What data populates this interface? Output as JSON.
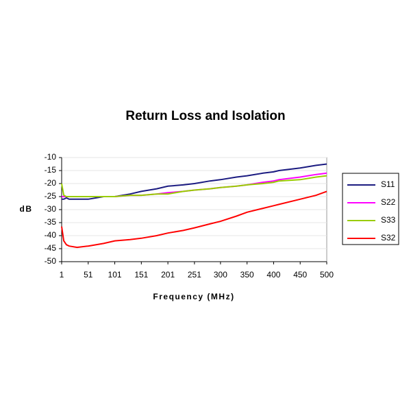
{
  "chart_data": {
    "type": "line",
    "title": "Return Loss and Isolation",
    "x_label": "Frequency (MHz)",
    "y_label": "dB",
    "x": [
      1,
      5,
      10,
      15,
      30,
      51,
      80,
      101,
      130,
      151,
      180,
      201,
      230,
      251,
      280,
      300,
      330,
      350,
      380,
      400,
      410,
      450,
      480,
      500
    ],
    "series": [
      {
        "name": "S11",
        "color": "#1a1a80",
        "values": [
          -26,
          -26,
          -25.5,
          -26,
          -26,
          -26,
          -25,
          -25,
          -24,
          -23,
          -22,
          -21,
          -20.5,
          -20,
          -19,
          -18.5,
          -17.5,
          -17,
          -16,
          -15.5,
          -15,
          -14,
          -13,
          -12.5
        ]
      },
      {
        "name": "S22",
        "color": "#ff00ff",
        "values": [
          -25,
          -25,
          -25,
          -25,
          -25,
          -25,
          -25,
          -25,
          -24.5,
          -24.5,
          -24,
          -23.5,
          -23,
          -22.5,
          -22,
          -21.5,
          -21,
          -20.5,
          -19.5,
          -19,
          -18.5,
          -17.5,
          -16.5,
          -16
        ]
      },
      {
        "name": "S33",
        "color": "#99cc00",
        "values": [
          -20,
          -24.5,
          -25,
          -25,
          -25,
          -25,
          -25,
          -25,
          -24.5,
          -24.5,
          -24,
          -24,
          -23,
          -22.5,
          -22,
          -21.5,
          -21,
          -20.5,
          -20,
          -19.5,
          -19,
          -18.5,
          -17.5,
          -17
        ]
      },
      {
        "name": "S32",
        "color": "#ff0000",
        "values": [
          -36.5,
          -42,
          -43.5,
          -44,
          -44.5,
          -44,
          -43,
          -42,
          -41.5,
          -41,
          -40,
          -39,
          -38,
          -37,
          -35.5,
          -34.5,
          -32.5,
          -31,
          -29.5,
          -28.5,
          -28,
          -26,
          -24.5,
          -23
        ]
      }
    ],
    "xlim": [
      1,
      500
    ],
    "xticks": [
      1,
      51,
      101,
      151,
      201,
      251,
      300,
      350,
      400,
      450,
      500
    ],
    "ylim": [
      -50,
      -10
    ],
    "yticks": [
      -10,
      -15,
      -20,
      -25,
      -30,
      -35,
      -40,
      -45,
      -50
    ],
    "grid": true,
    "legend": "right"
  }
}
